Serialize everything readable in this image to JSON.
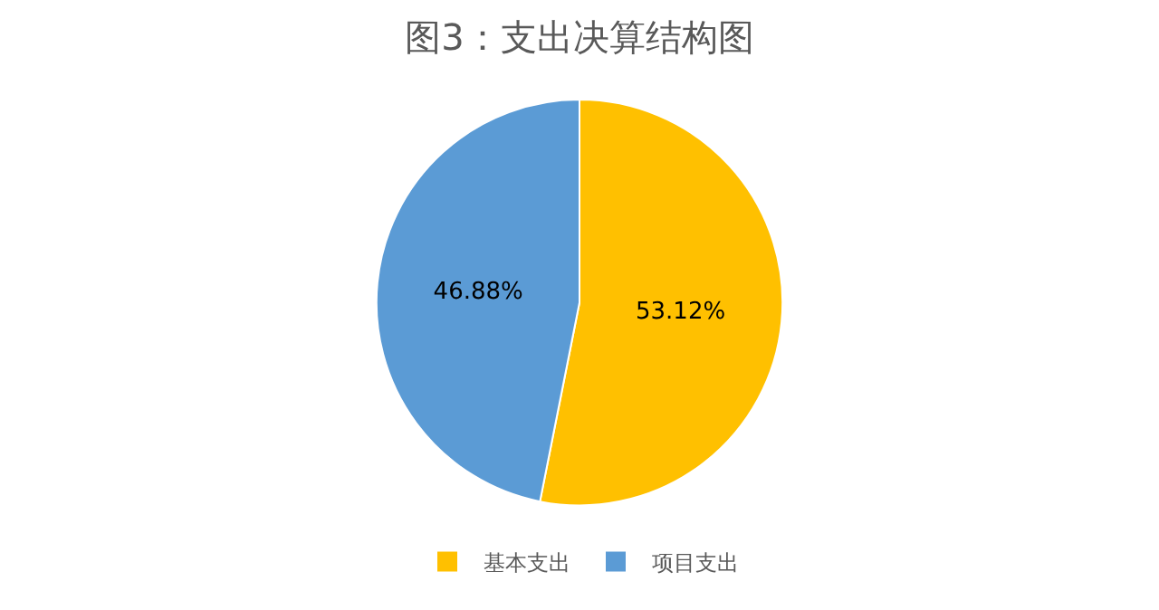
{
  "chart_data": {
    "type": "pie",
    "title": "图3：支出决算结构图",
    "categories": [
      "基本支出",
      "项目支出"
    ],
    "values": [
      53.12,
      46.88
    ],
    "colors": [
      "#ffc000",
      "#5b9bd5"
    ],
    "value_labels": [
      "53.12%",
      "46.88%"
    ],
    "legend": "bottom"
  }
}
